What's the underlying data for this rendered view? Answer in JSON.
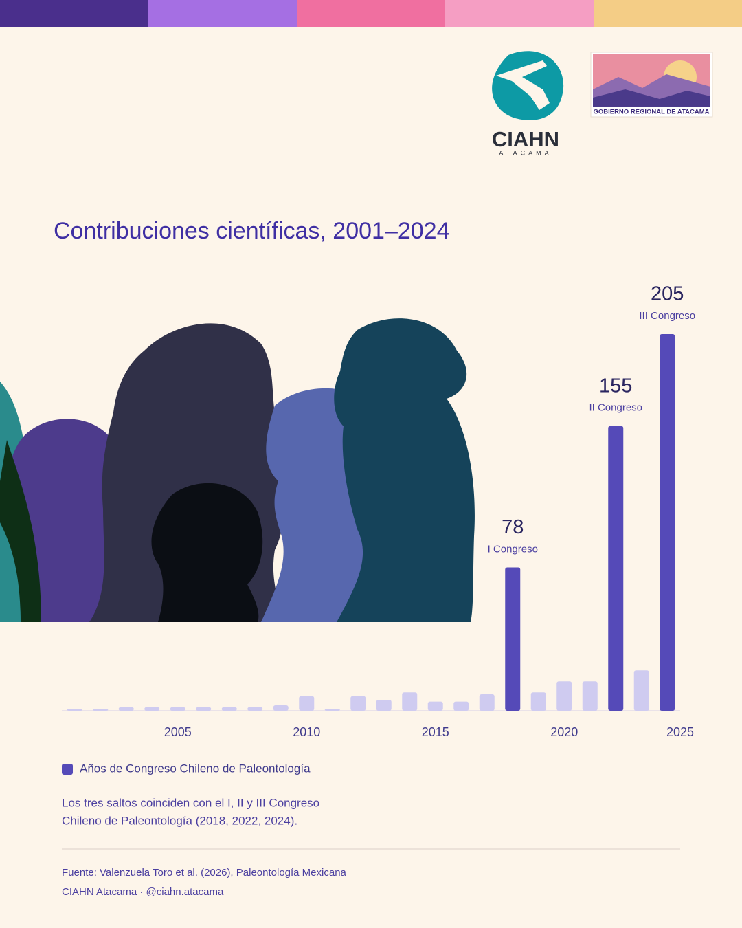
{
  "branding": {
    "logo_name": "CIAHN",
    "logo_sub": "ATACAMA",
    "partner": "GOBIERNO REGIONAL DE ATACAMA"
  },
  "chart_data": {
    "type": "bar",
    "title": "Contribuciones científicas, 2001–2024",
    "x": [
      2001,
      2002,
      2003,
      2004,
      2005,
      2006,
      2007,
      2008,
      2009,
      2010,
      2011,
      2012,
      2013,
      2014,
      2015,
      2016,
      2017,
      2018,
      2019,
      2020,
      2021,
      2022,
      2023,
      2024
    ],
    "values": [
      1,
      1,
      2,
      2,
      2,
      2,
      2,
      2,
      3,
      8,
      1,
      8,
      6,
      10,
      5,
      5,
      9,
      78,
      10,
      16,
      16,
      155,
      22,
      205
    ],
    "colors": [
      "#cfcbf0",
      "#cfcbf0",
      "#cfcbf0",
      "#cfcbf0",
      "#cfcbf0",
      "#cfcbf0",
      "#cfcbf0",
      "#cfcbf0",
      "#cfcbf0",
      "#cfcbf0",
      "#cfcbf0",
      "#cfcbf0",
      "#cfcbf0",
      "#cfcbf0",
      "#cfcbf0",
      "#cfcbf0",
      "#cfcbf0",
      "#554ab8",
      "#cfcbf0",
      "#cfcbf0",
      "#cfcbf0",
      "#554ab8",
      "#cfcbf0",
      "#554ab8"
    ],
    "xlim": [
      2000.5,
      2024.5
    ],
    "xticks": [
      2005,
      2010,
      2015,
      2020,
      2025
    ],
    "ylim": [
      0,
      205
    ],
    "annotations": [
      {
        "x": 2018,
        "text": "I Congreso"
      },
      {
        "x": 2022,
        "text": "II Congreso"
      },
      {
        "x": 2024,
        "text": "III Congreso"
      }
    ],
    "legend": {
      "label": "Años de Congreso Chileno de Paleontología",
      "color": "#554ab8"
    },
    "note": [
      "Los tres saltos coinciden con el I, II y III Congreso",
      "Chileno de Paleontología (2018, 2022, 2024)."
    ],
    "source": [
      "Fuente: Valenzuela Toro et al. (2026), Paleontología Mexicana",
      "CIAHN Atacama · @ciahn.atacama"
    ]
  }
}
